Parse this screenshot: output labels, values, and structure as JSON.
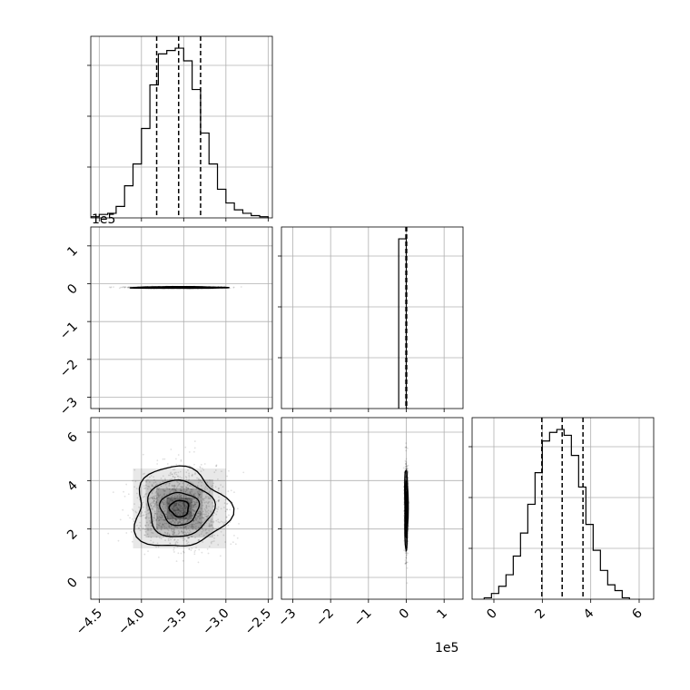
{
  "chart_data": {
    "type": "corner",
    "grid": true,
    "params": [
      {
        "index": 0,
        "range": [
          -4.6,
          -2.45
        ],
        "ticks": [
          -4.5,
          -4.0,
          -3.5,
          -3.0,
          -2.5
        ],
        "tick_labels": [
          "−4.5",
          "−4.0",
          "−3.5",
          "−3.0",
          "−2.5"
        ],
        "quantiles": [
          -3.82,
          -3.56,
          -3.3
        ]
      },
      {
        "index": 1,
        "range": [
          -3.3,
          1.5
        ],
        "ticks": [
          -3,
          -2,
          -1,
          0,
          1
        ],
        "tick_labels": [
          "−3",
          "−2",
          "−1",
          "0",
          "1"
        ],
        "multiplier": "1e5",
        "quantiles": [
          -0.01,
          0.0,
          0.01
        ]
      },
      {
        "index": 2,
        "range": [
          -0.9,
          6.6
        ],
        "ticks": [
          0,
          2,
          4,
          6
        ],
        "tick_labels": [
          "0",
          "2",
          "4",
          "6"
        ],
        "quantiles": [
          1.98,
          2.82,
          3.68
        ]
      }
    ],
    "histograms": [
      {
        "param": 0,
        "bin_edges": [
          -4.6,
          -4.5,
          -4.4,
          -4.3,
          -4.2,
          -4.1,
          -4.0,
          -3.9,
          -3.8,
          -3.7,
          -3.6,
          -3.5,
          -3.4,
          -3.3,
          -3.2,
          -3.1,
          -3.0,
          -2.9,
          -2.8,
          -2.7,
          -2.6,
          -2.5
        ],
        "counts": [
          1,
          3,
          4,
          10,
          28,
          47,
          78,
          116,
          143,
          146,
          148,
          137,
          112,
          74,
          47,
          25,
          13,
          7,
          4,
          2,
          1
        ]
      },
      {
        "param": 1,
        "bin_edges": [
          -0.2,
          0.0,
          0.05
        ],
        "counts": [
          100,
          0
        ]
      },
      {
        "param": 2,
        "bin_edges": [
          -0.4,
          -0.1,
          0.2,
          0.5,
          0.8,
          1.1,
          1.4,
          1.7,
          2.0,
          2.3,
          2.6,
          2.9,
          3.2,
          3.5,
          3.8,
          4.1,
          4.4,
          4.7,
          5.0,
          5.3,
          5.6
        ],
        "counts": [
          0.5,
          2,
          4.5,
          8.5,
          15,
          23,
          33,
          44,
          55,
          58,
          59,
          57,
          50,
          39,
          26,
          17,
          10,
          5,
          3,
          0.5
        ]
      }
    ],
    "panels_2d": [
      {
        "x_param": 0,
        "y_param": 1,
        "center": [
          -3.56,
          -0.1
        ],
        "spread": [
          0.25,
          0.01
        ],
        "levels": 3
      },
      {
        "x_param": 0,
        "y_param": 2,
        "center": [
          -3.55,
          2.85
        ],
        "spread": [
          0.25,
          0.75
        ],
        "levels": 3
      },
      {
        "x_param": 1,
        "y_param": 2,
        "center": [
          0.0,
          2.85
        ],
        "spread": [
          0.02,
          0.75
        ],
        "levels": 3
      }
    ],
    "x_multiplier_bottom": "1e5",
    "y_multiplier_left": "1e5"
  }
}
